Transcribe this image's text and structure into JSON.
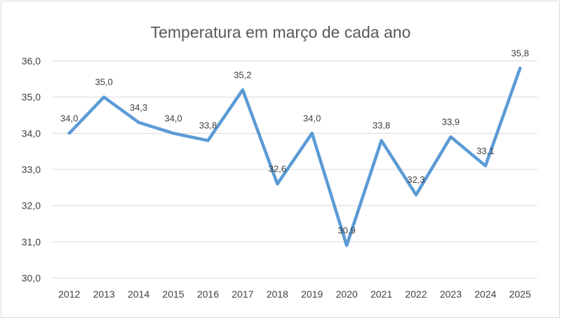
{
  "chart_data": {
    "type": "line",
    "title": "Temperatura em março de cada ano",
    "categories": [
      "2012",
      "2013",
      "2014",
      "2015",
      "2016",
      "2017",
      "2018",
      "2019",
      "2020",
      "2021",
      "2022",
      "2023",
      "2024",
      "2025"
    ],
    "series": [
      {
        "values": [
          34.0,
          35.0,
          34.3,
          34.0,
          33.8,
          35.2,
          32.6,
          34.0,
          30.9,
          33.8,
          32.3,
          33.9,
          33.1,
          35.8
        ],
        "labels": [
          "34,0",
          "35,0",
          "34,3",
          "34,0",
          "33,8",
          "35,2",
          "32,6",
          "34,0",
          "30,9",
          "33,8",
          "32,3",
          "33,9",
          "33,1",
          "35,8"
        ]
      }
    ],
    "ylim": [
      30,
      36
    ],
    "yticks": [
      "30,0",
      "31,0",
      "32,0",
      "33,0",
      "34,0",
      "35,0",
      "36,0"
    ],
    "grid": true,
    "line_color": "#5b9bd5"
  }
}
